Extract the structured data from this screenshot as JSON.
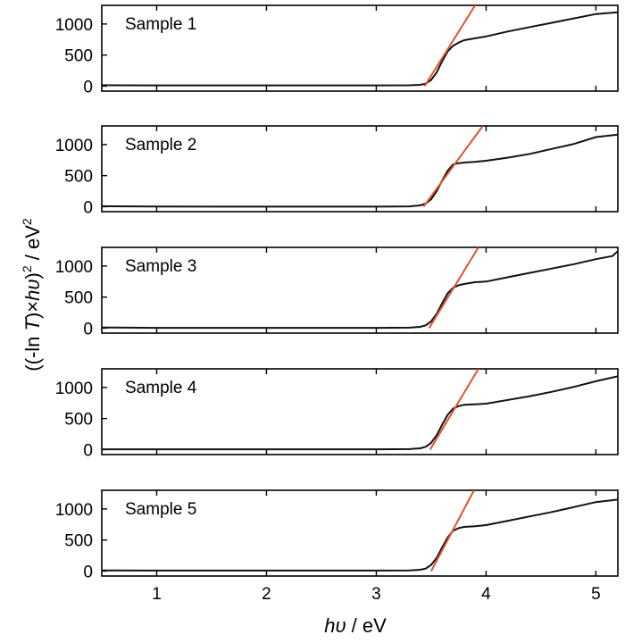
{
  "chart_data": {
    "type": "line",
    "xlabel_prefix": "hυ",
    "xlabel_suffix": " / eV",
    "ylabel": {
      "open": "((-ln ",
      "T": "T",
      "times": ")×",
      "hv": "hυ",
      "close": ")",
      "sup1": "2",
      "unit": " / eV",
      "sup2": "2"
    },
    "xlim": [
      0.5,
      5.2
    ],
    "ylim": [
      -80,
      1300
    ],
    "xticks": [
      1,
      2,
      3,
      4,
      5
    ],
    "yticks": [
      0,
      500,
      1000
    ],
    "grid": false,
    "panels": [
      {
        "label": "Sample 1",
        "series": {
          "x": [
            0.5,
            1.0,
            2.0,
            3.0,
            3.3,
            3.4,
            3.45,
            3.5,
            3.55,
            3.6,
            3.65,
            3.7,
            3.75,
            3.8,
            3.9,
            4.0,
            4.2,
            4.4,
            4.6,
            4.8,
            5.0,
            5.2
          ],
          "y": [
            15,
            12,
            12,
            12,
            14,
            20,
            40,
            100,
            220,
            400,
            560,
            650,
            700,
            740,
            770,
            800,
            880,
            950,
            1020,
            1090,
            1160,
            1190
          ]
        },
        "fit_line": {
          "x": [
            3.44,
            3.9
          ],
          "y": [
            0,
            1300
          ]
        }
      },
      {
        "label": "Sample 2",
        "series": {
          "x": [
            0.5,
            1.0,
            2.0,
            3.0,
            3.3,
            3.4,
            3.45,
            3.5,
            3.55,
            3.6,
            3.65,
            3.7,
            3.75,
            3.8,
            3.9,
            4.0,
            4.2,
            4.4,
            4.6,
            4.8,
            5.0,
            5.2
          ],
          "y": [
            8,
            2,
            0,
            0,
            5,
            20,
            50,
            120,
            250,
            420,
            580,
            680,
            700,
            710,
            720,
            740,
            790,
            850,
            930,
            1010,
            1120,
            1160
          ]
        },
        "fit_line": {
          "x": [
            3.43,
            3.97
          ],
          "y": [
            0,
            1300
          ]
        }
      },
      {
        "label": "Sample 3",
        "series": {
          "x": [
            0.5,
            1.0,
            2.0,
            3.0,
            3.3,
            3.4,
            3.45,
            3.5,
            3.55,
            3.6,
            3.65,
            3.7,
            3.75,
            3.8,
            3.9,
            4.0,
            4.2,
            4.4,
            4.6,
            4.8,
            5.0,
            5.15,
            5.2
          ],
          "y": [
            10,
            5,
            5,
            5,
            8,
            20,
            45,
            110,
            230,
            400,
            560,
            650,
            690,
            710,
            740,
            750,
            820,
            890,
            960,
            1030,
            1110,
            1160,
            1240
          ]
        },
        "fit_line": {
          "x": [
            3.48,
            3.93
          ],
          "y": [
            0,
            1300
          ]
        }
      },
      {
        "label": "Sample 4",
        "series": {
          "x": [
            0.5,
            1.0,
            2.0,
            3.0,
            3.3,
            3.4,
            3.45,
            3.5,
            3.55,
            3.6,
            3.65,
            3.7,
            3.75,
            3.8,
            3.9,
            4.0,
            4.2,
            4.4,
            4.6,
            4.8,
            5.0,
            5.2
          ],
          "y": [
            5,
            5,
            5,
            5,
            8,
            20,
            45,
            110,
            230,
            400,
            560,
            660,
            700,
            720,
            730,
            740,
            800,
            860,
            930,
            1010,
            1100,
            1180
          ]
        },
        "fit_line": {
          "x": [
            3.49,
            3.93
          ],
          "y": [
            0,
            1300
          ]
        }
      },
      {
        "label": "Sample 5",
        "series": {
          "x": [
            0.5,
            1.0,
            2.0,
            3.0,
            3.3,
            3.4,
            3.45,
            3.5,
            3.55,
            3.6,
            3.65,
            3.7,
            3.75,
            3.8,
            3.9,
            4.0,
            4.2,
            4.4,
            4.6,
            4.8,
            5.0,
            5.2
          ],
          "y": [
            10,
            8,
            8,
            8,
            10,
            20,
            40,
            100,
            210,
            380,
            540,
            650,
            690,
            710,
            720,
            740,
            810,
            880,
            950,
            1030,
            1110,
            1150
          ]
        },
        "fit_line": {
          "x": [
            3.5,
            3.89
          ],
          "y": [
            0,
            1300
          ]
        }
      }
    ]
  },
  "colors": {
    "data_line": "#111111",
    "fit_line": "#e0532e",
    "axis": "#000000"
  }
}
